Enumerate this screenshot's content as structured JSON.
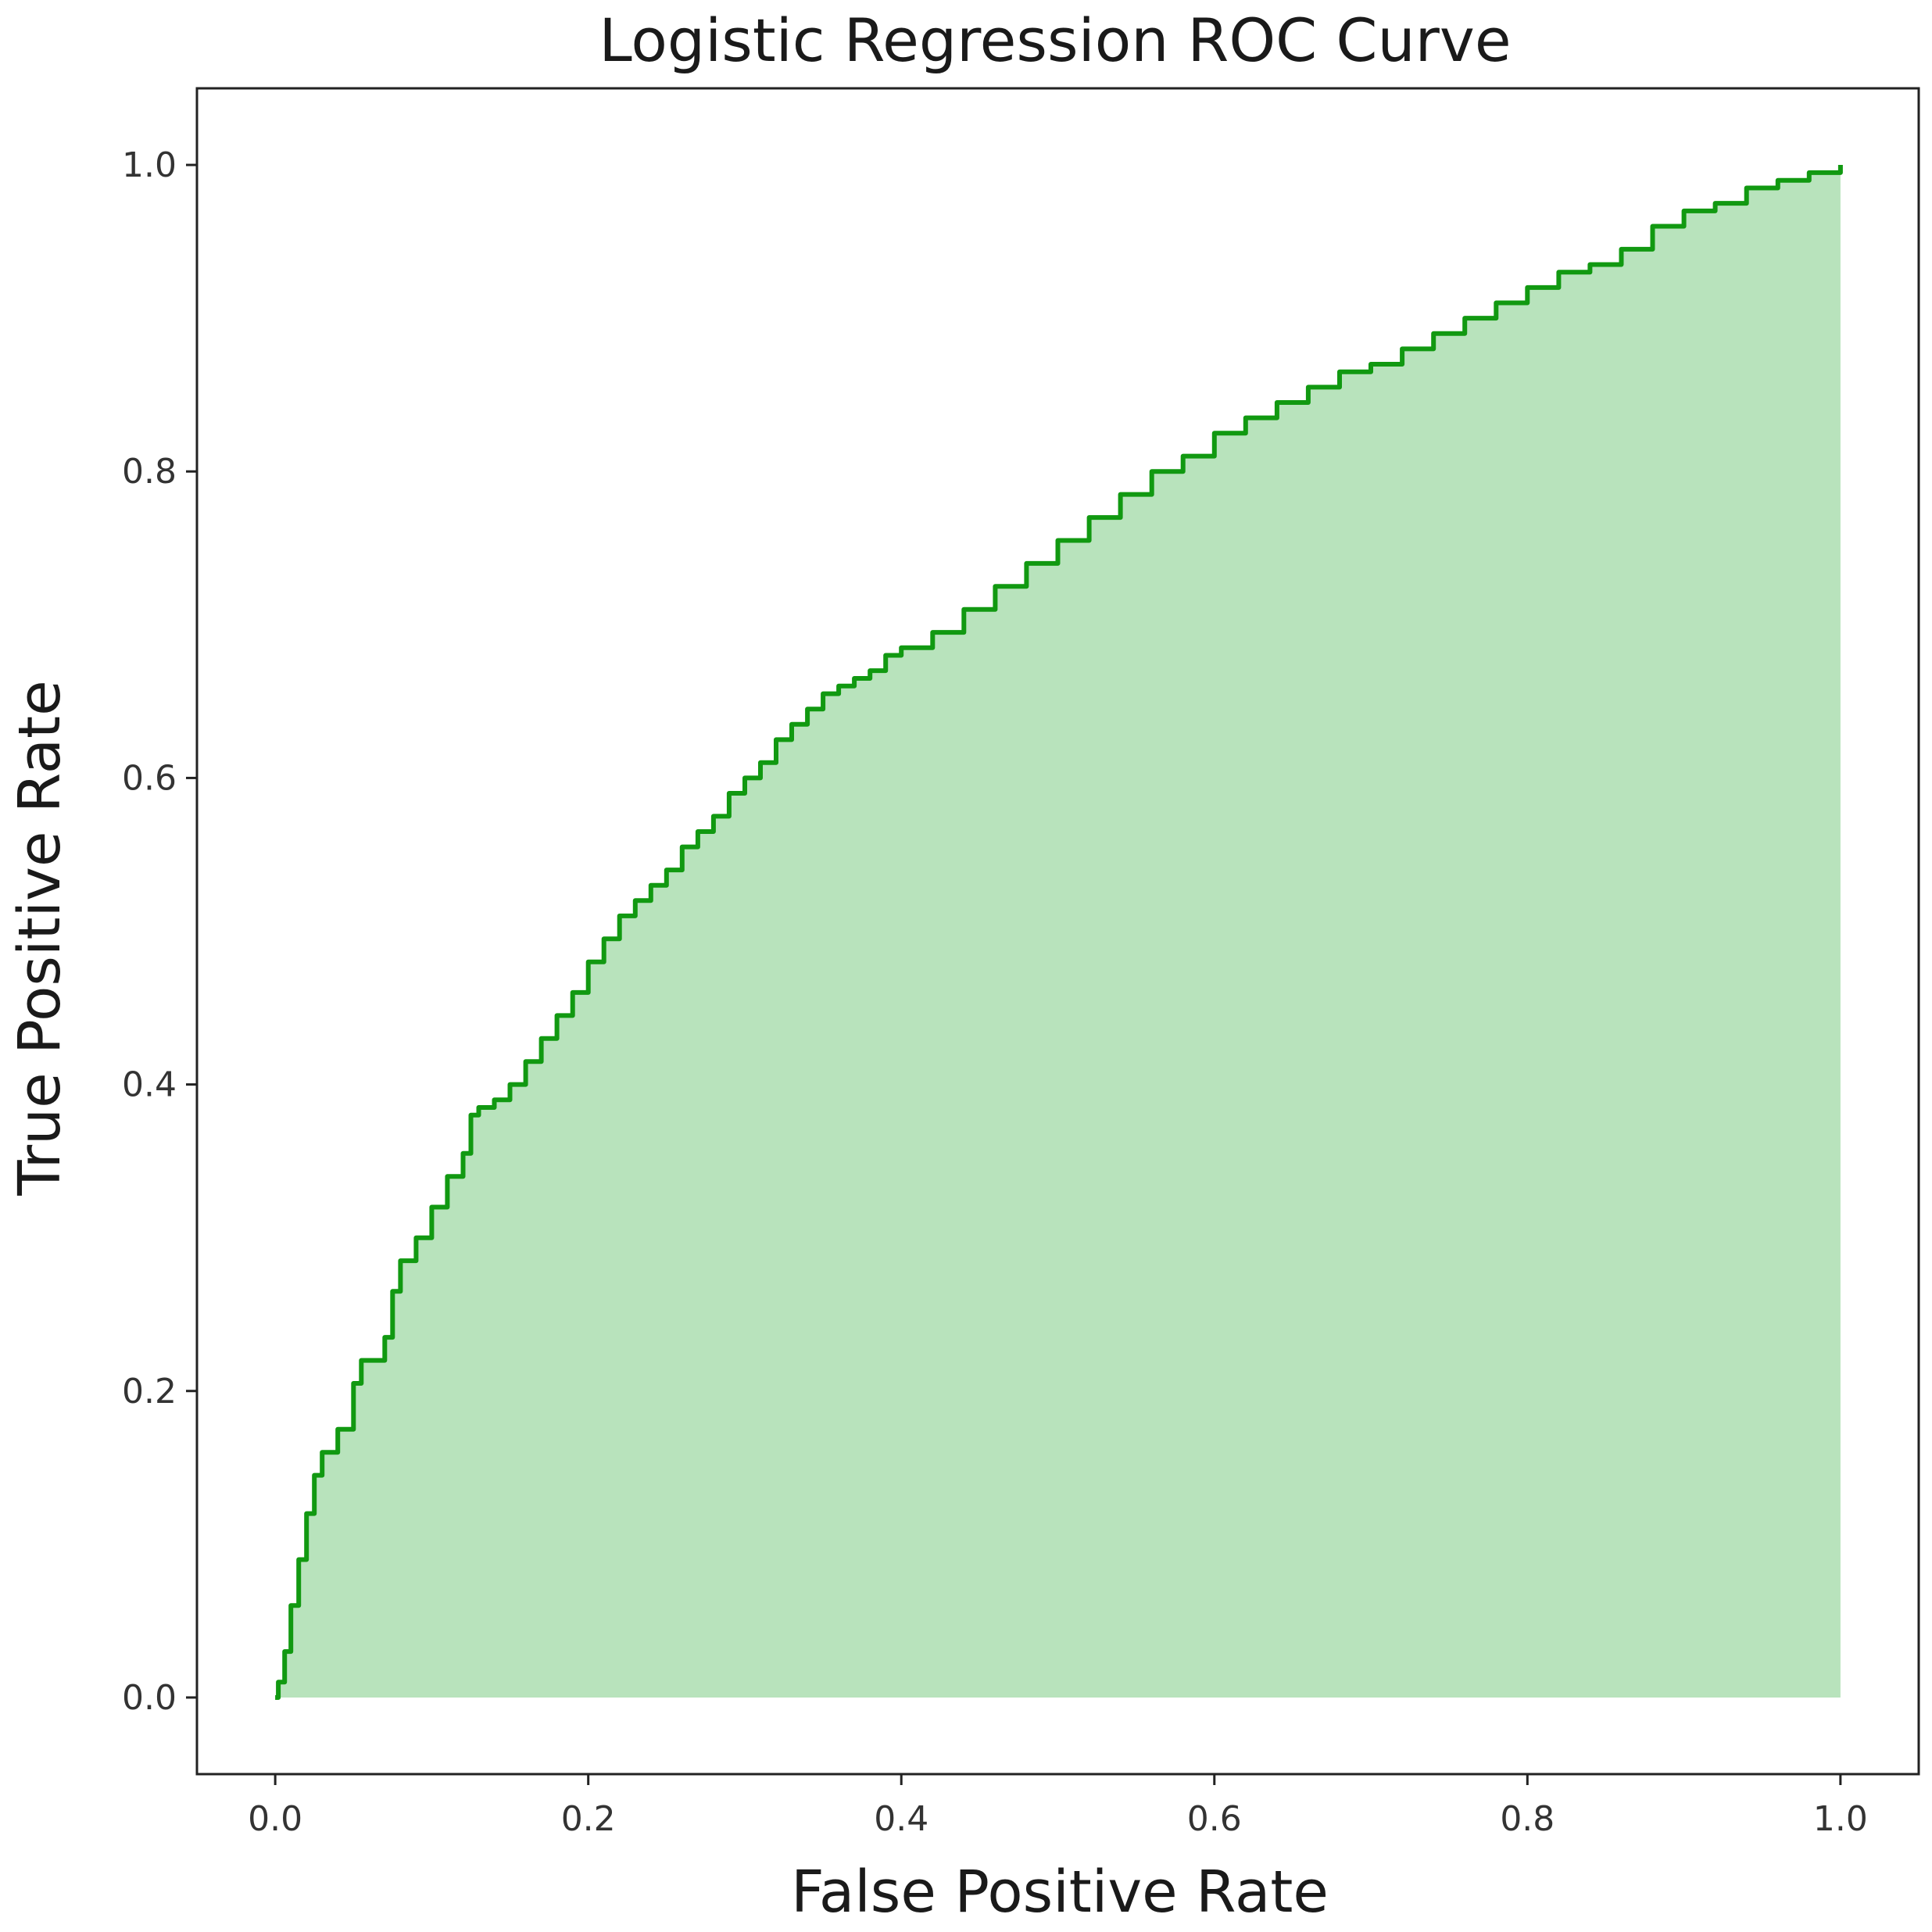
{
  "chart_data": {
    "type": "area",
    "title": "Logistic Regression ROC Curve",
    "xlabel": "False Positive Rate",
    "ylabel": "True Positive Rate",
    "xlim": [
      -0.05,
      1.05
    ],
    "ylim": [
      -0.05,
      1.05
    ],
    "x_ticks": [
      0.0,
      0.2,
      0.4,
      0.6,
      0.8,
      1.0
    ],
    "y_ticks": [
      0.0,
      0.2,
      0.4,
      0.6,
      0.8,
      1.0
    ],
    "x_tick_labels": [
      "0.0",
      "0.2",
      "0.4",
      "0.6",
      "0.8",
      "1.0"
    ],
    "y_tick_labels": [
      "0.0",
      "0.2",
      "0.4",
      "0.6",
      "0.8",
      "1.0"
    ],
    "grid": false,
    "line_color": "#119911",
    "fill_color": "#b8e3bc",
    "x": [
      0.0,
      0.002,
      0.006,
      0.01,
      0.015,
      0.02,
      0.025,
      0.03,
      0.035,
      0.04,
      0.05,
      0.055,
      0.06,
      0.07,
      0.075,
      0.08,
      0.085,
      0.09,
      0.1,
      0.11,
      0.12,
      0.125,
      0.13,
      0.14,
      0.15,
      0.16,
      0.17,
      0.18,
      0.19,
      0.2,
      0.21,
      0.22,
      0.23,
      0.24,
      0.25,
      0.26,
      0.27,
      0.28,
      0.29,
      0.3,
      0.31,
      0.32,
      0.33,
      0.34,
      0.35,
      0.36,
      0.37,
      0.38,
      0.39,
      0.4,
      0.42,
      0.44,
      0.46,
      0.48,
      0.5,
      0.52,
      0.54,
      0.56,
      0.58,
      0.6,
      0.62,
      0.64,
      0.66,
      0.68,
      0.7,
      0.72,
      0.74,
      0.76,
      0.78,
      0.8,
      0.82,
      0.84,
      0.86,
      0.88,
      0.9,
      0.92,
      0.94,
      0.96,
      0.98,
      1.0
    ],
    "y": [
      0.0,
      0.01,
      0.03,
      0.06,
      0.09,
      0.12,
      0.145,
      0.16,
      0.16,
      0.175,
      0.205,
      0.22,
      0.22,
      0.235,
      0.265,
      0.285,
      0.285,
      0.3,
      0.32,
      0.34,
      0.355,
      0.38,
      0.385,
      0.39,
      0.4,
      0.415,
      0.43,
      0.445,
      0.46,
      0.48,
      0.495,
      0.51,
      0.52,
      0.53,
      0.54,
      0.555,
      0.565,
      0.575,
      0.59,
      0.6,
      0.61,
      0.625,
      0.635,
      0.645,
      0.655,
      0.66,
      0.665,
      0.67,
      0.68,
      0.685,
      0.695,
      0.71,
      0.725,
      0.74,
      0.755,
      0.77,
      0.785,
      0.8,
      0.81,
      0.825,
      0.835,
      0.845,
      0.855,
      0.865,
      0.87,
      0.88,
      0.89,
      0.9,
      0.91,
      0.92,
      0.93,
      0.935,
      0.945,
      0.96,
      0.97,
      0.975,
      0.985,
      0.99,
      0.995,
      1.0
    ]
  }
}
